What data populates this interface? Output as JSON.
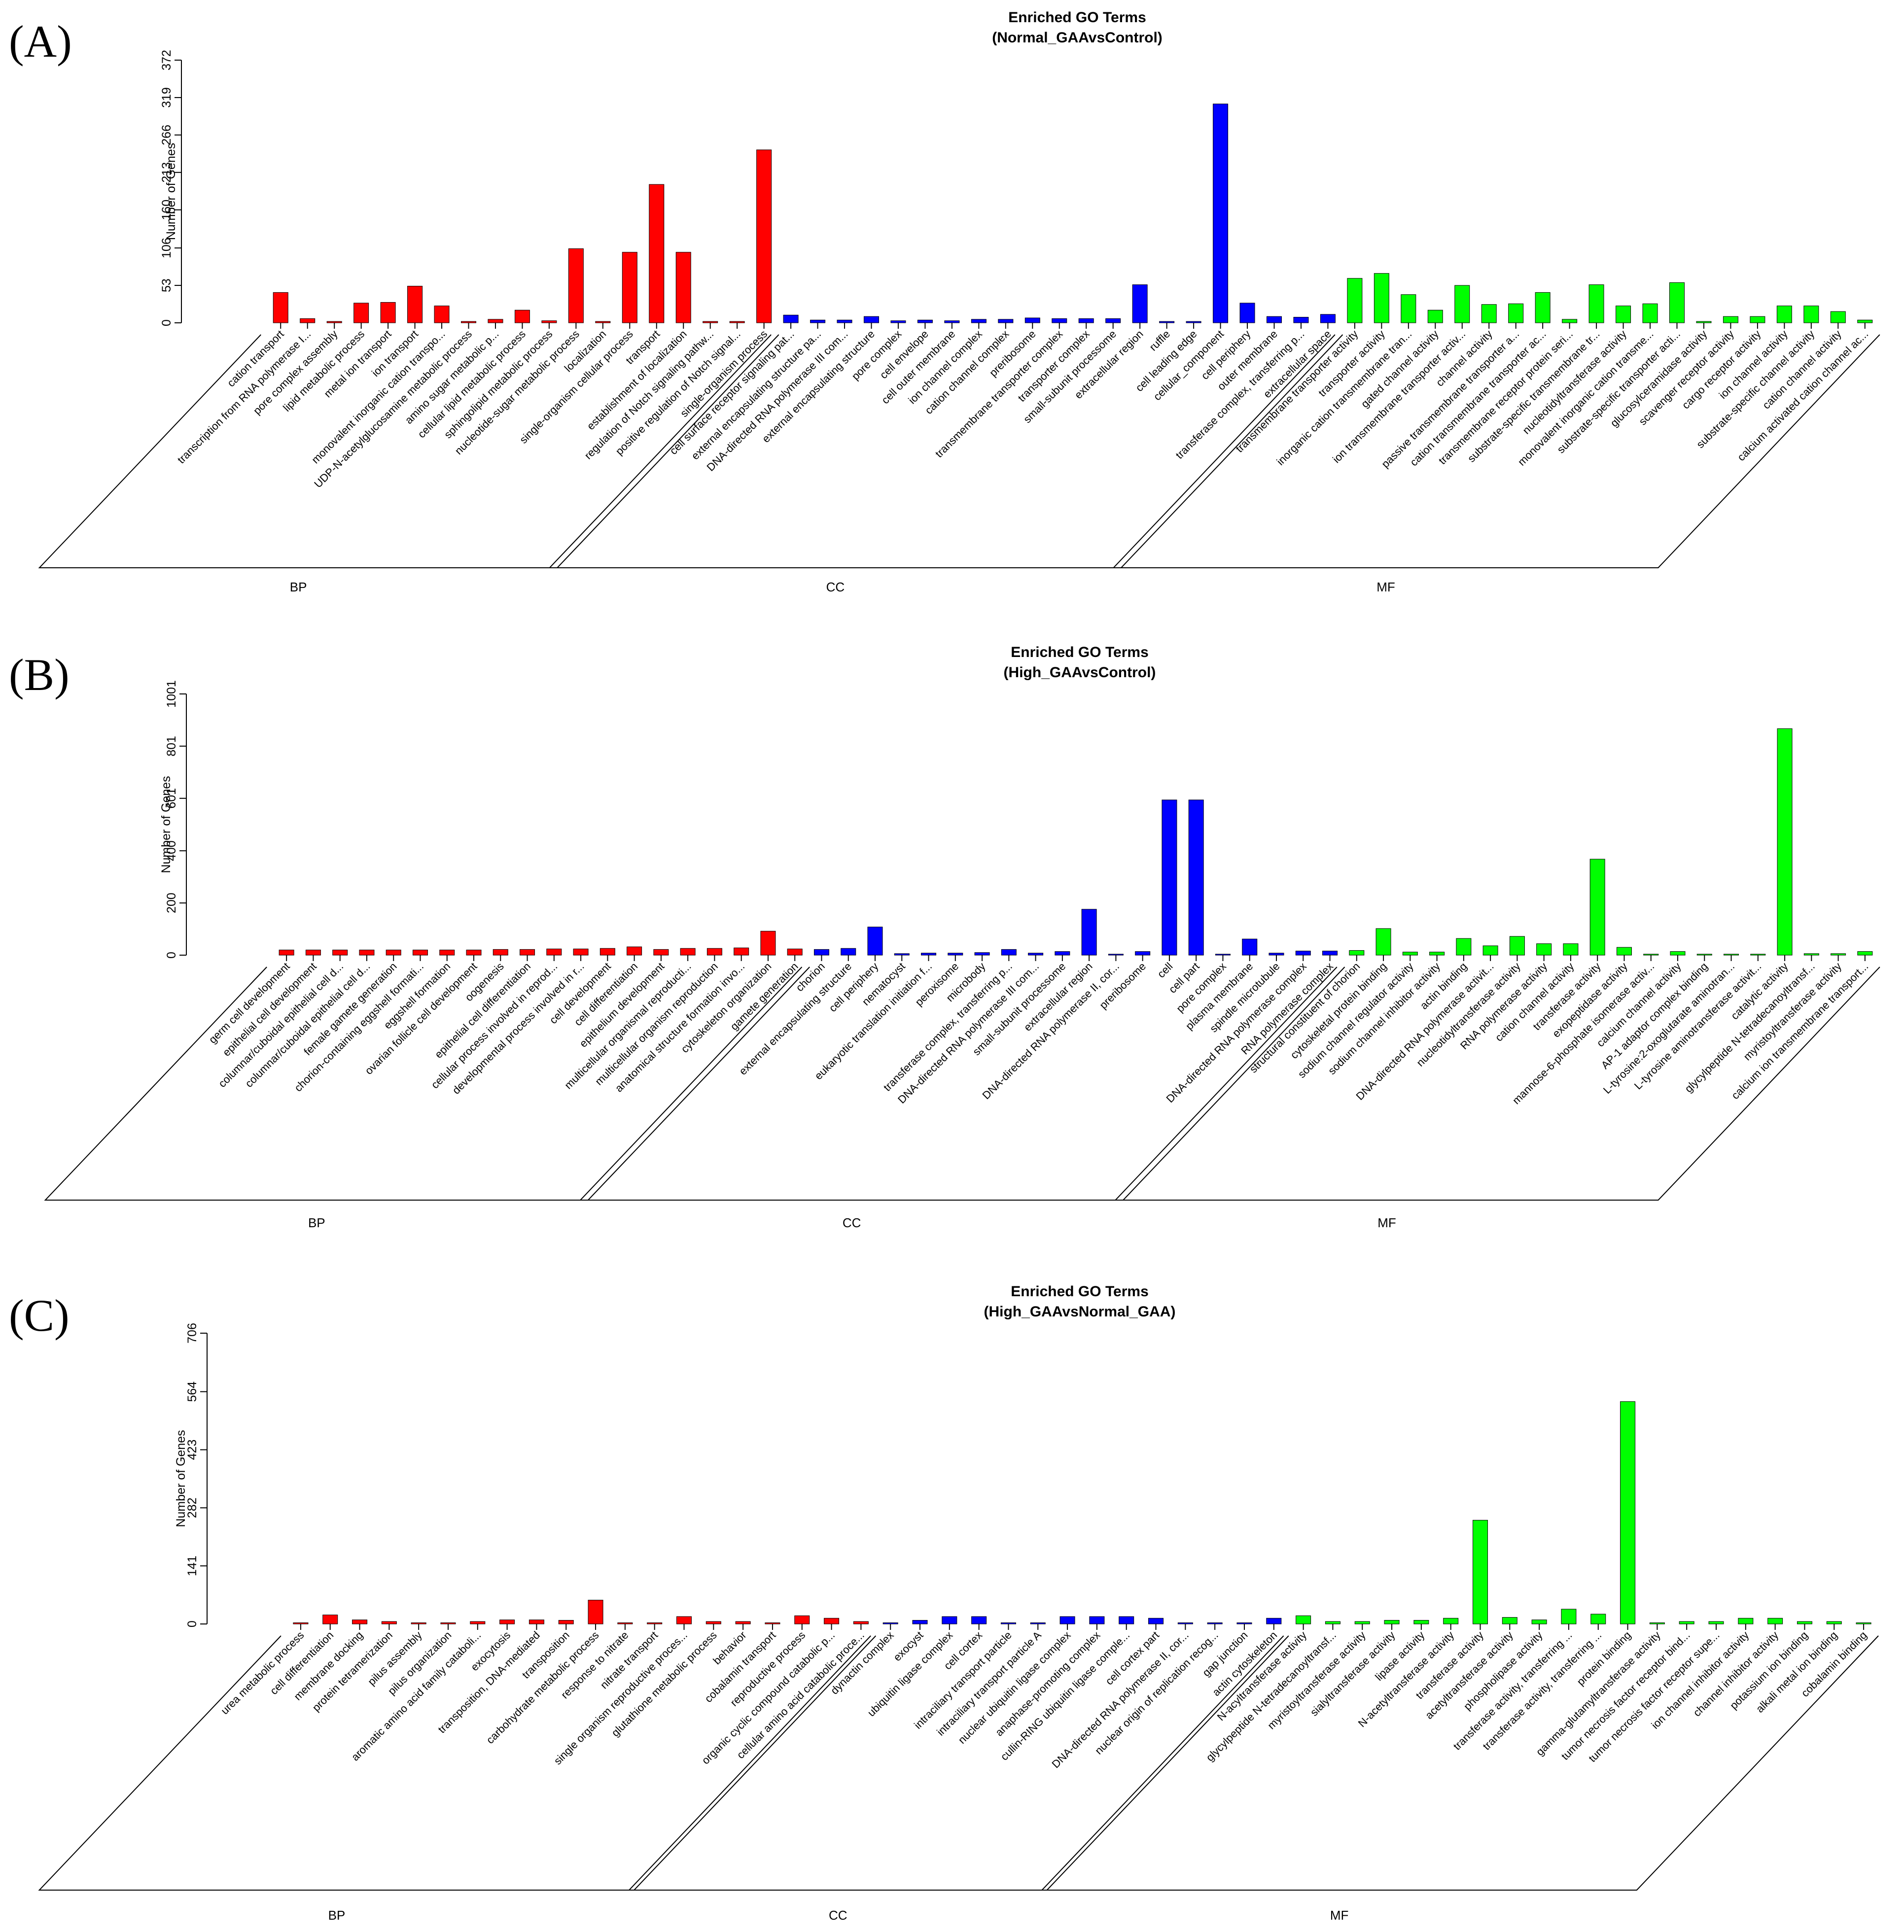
{
  "figure": {
    "panels": [
      "(A)",
      "(B)",
      "(C)"
    ]
  },
  "colors": {
    "BP": "#ff0000",
    "CC": "#0000ff",
    "MF": "#00ff00"
  },
  "chart_data": [
    {
      "type": "bar",
      "panel_label": "(A)",
      "title": "Enriched GO Terms",
      "subtitle": "(Normal_GAAvsControl)",
      "ylabel": "Number of Genes",
      "yticks": [
        0,
        53,
        106,
        160,
        213,
        266,
        319,
        372
      ],
      "ylim": [
        0,
        372
      ],
      "groups": [
        {
          "name": "BP",
          "color": "#ff0000",
          "categories": [
            "cation transport",
            "transcription from RNA polymerase I...",
            "pore complex assembly",
            "lipid metabolic process",
            "metal ion transport",
            "ion transport",
            "monovalent inorganic cation transpo...",
            "UDP-N-acetylglucosamine metabolic process",
            "amino sugar metabolic p...",
            "cellular lipid metabolic process",
            "sphingolipid metabolic process",
            "nucleotide-sugar metabolic process",
            "localization",
            "single-organism cellular process",
            "transport",
            "establishment of localization",
            "regulation of Notch signaling pathw...",
            "positive regulation of Notch signal...",
            "single-organism process"
          ],
          "values": [
            43,
            6,
            2,
            28,
            29,
            52,
            24,
            2,
            5,
            18,
            3,
            105,
            2,
            100,
            196,
            100,
            2,
            2,
            245
          ]
        },
        {
          "name": "CC",
          "color": "#0000ff",
          "categories": [
            "cell surface receptor signaling pat...",
            "external encapsulating structure pa...",
            "DNA-directed RNA polymerase III com...",
            "external encapsulating structure",
            "pore complex",
            "cell envelope",
            "cell outer membrane",
            "ion channel complex",
            "cation channel complex",
            "preribosome",
            "transmembrane transporter complex",
            "transporter complex",
            "small-subunit processome",
            "extracellular region",
            "ruffle",
            "cell leading edge",
            "cellular_component",
            "cell periphery",
            "outer membrane",
            "transferase complex, transferring p...",
            "extracellular space"
          ],
          "values": [
            11,
            4,
            4,
            9,
            3,
            4,
            3,
            5,
            5,
            7,
            6,
            6,
            6,
            54,
            2,
            2,
            310,
            28,
            9,
            8,
            12
          ]
        },
        {
          "name": "MF",
          "color": "#00ff00",
          "categories": [
            "transmembrane transporter activity",
            "transporter activity",
            "inorganic cation transmembrane tran...",
            "gated channel activity",
            "ion transmembrane transporter activ...",
            "channel activity",
            "passive transmembrane transporter a...",
            "cation transmembrane transporter ac...",
            "transmembrane receptor protein seri...",
            "substrate-specific transmembrane tr...",
            "nucleotidyltransferase activity",
            "monovalent inorganic cation transme...",
            "substrate-specific transporter acti...",
            "glucosylceramidase activity",
            "scavenger receptor activity",
            "cargo receptor activity",
            "ion channel activity",
            "substrate-specific channel activity",
            "cation channel activity",
            "calcium activated cation channel ac..."
          ],
          "values": [
            63,
            70,
            40,
            18,
            53,
            26,
            27,
            43,
            5,
            54,
            24,
            27,
            57,
            2,
            9,
            9,
            24,
            24,
            16,
            4
          ]
        }
      ]
    },
    {
      "type": "bar",
      "panel_label": "(B)",
      "title": "Enriched GO Terms",
      "subtitle": "(High_GAAvsControl)",
      "ylabel": "Number of Genes",
      "yticks": [
        0,
        200,
        400,
        601,
        801,
        1001
      ],
      "ylim": [
        0,
        1001
      ],
      "groups": [
        {
          "name": "BP",
          "color": "#ff0000",
          "categories": [
            "germ cell development",
            "epithelial cell development",
            "columnar/cuboidal epithelial cell d...",
            "columnar/cuboidal epithelial cell d...",
            "female gamete generation",
            "chorion-containing eggshell formati...",
            "eggshell formation",
            "ovarian follicle cell development",
            "oogenesis",
            "epithelial cell differentiation",
            "cellular process involved in reprod...",
            "developmental process involved in r...",
            "cell development",
            "cell differentiation",
            "epithelium development",
            "multicellular organismal reproducti...",
            "multicellular organism reproduction",
            "anatomical structure formation invo...",
            "cytoskeleton organization",
            "gamete generation"
          ],
          "values": [
            20,
            20,
            20,
            20,
            20,
            20,
            20,
            20,
            22,
            22,
            24,
            24,
            26,
            32,
            22,
            26,
            26,
            28,
            92,
            24
          ]
        },
        {
          "name": "CC",
          "color": "#0000ff",
          "categories": [
            "chorion",
            "external encapsulating structure",
            "cell periphery",
            "nematocyst",
            "eukaryotic translation initiation f...",
            "peroxisome",
            "microbody",
            "transferase complex, transferring p...",
            "DNA-directed RNA polymerase III com...",
            "small-subunit processome",
            "extracellular region",
            "DNA-directed RNA polymerase II, cor...",
            "preribosome",
            "cell",
            "cell part",
            "pore complex",
            "plasma membrane",
            "spindle microtubule",
            "DNA-directed RNA polymerase complex",
            "RNA polymerase complex"
          ],
          "values": [
            22,
            26,
            108,
            6,
            8,
            8,
            10,
            22,
            8,
            14,
            176,
            4,
            14,
            595,
            595,
            4,
            62,
            8,
            16,
            16
          ]
        },
        {
          "name": "MF",
          "color": "#00ff00",
          "categories": [
            "structural constituent of chorion",
            "cytoskeletal protein binding",
            "sodium channel regulator activity",
            "sodium channel inhibitor activity",
            "actin binding",
            "DNA-directed RNA polymerase activit...",
            "nucleotidyltransferase activity",
            "RNA polymerase activity",
            "cation channel activity",
            "transferase activity",
            "exopeptidase activity",
            "mannose-6-phosphate isomerase activ...",
            "calcium channel activity",
            "AP-1 adaptor complex binding",
            "L-tyrosine:2-oxoglutarate aminotran...",
            "L-tyrosine aminotransferase activit...",
            "catalytic activity",
            "glycylpeptide N-tetradecanoyltransf...",
            "myristoyltransferase activity",
            "calcium ion transmembrane transport..."
          ],
          "values": [
            18,
            102,
            12,
            12,
            64,
            36,
            72,
            44,
            44,
            368,
            30,
            4,
            14,
            4,
            4,
            4,
            868,
            6,
            6,
            14
          ]
        }
      ]
    },
    {
      "type": "bar",
      "panel_label": "(C)",
      "title": "Enriched GO Terms",
      "subtitle": "(High_GAAvsNormal_GAA)",
      "ylabel": "Number of Genes",
      "yticks": [
        0,
        141,
        282,
        423,
        564,
        706
      ],
      "ylim": [
        0,
        706
      ],
      "groups": [
        {
          "name": "BP",
          "color": "#ff0000",
          "categories": [
            "urea metabolic process",
            "cell differentiation",
            "membrane docking",
            "protein tetramerization",
            "pilus assembly",
            "pilus organization",
            "aromatic amino acid family cataboli...",
            "exocytosis",
            "transposition, DNA-mediated",
            "transposition",
            "carbohydrate metabolic process",
            "response to nitrate",
            "nitrate transport",
            "single organism reproductive proces...",
            "glutathione metabolic process",
            "behavior",
            "cobalamin transport",
            "reproductive process",
            "organic cyclic compound catabolic p...",
            "cellular amino acid catabolic proce..."
          ],
          "values": [
            3,
            22,
            10,
            6,
            3,
            3,
            6,
            10,
            10,
            9,
            58,
            3,
            3,
            18,
            6,
            6,
            3,
            20,
            14,
            6
          ]
        },
        {
          "name": "CC",
          "color": "#0000ff",
          "categories": [
            "dynactin complex",
            "exocyst",
            "ubiquitin ligase complex",
            "cell cortex",
            "intraciliary transport particle",
            "intraciliary transport particle A",
            "nuclear ubiquitin ligase complex",
            "anaphase-promoting complex",
            "cullin-RING ubiquitin ligase comple...",
            "cell cortex part",
            "DNA-directed RNA polymerase II, cor...",
            "nuclear origin of replication recog...",
            "gap junction",
            "actin cytoskeleton"
          ],
          "values": [
            3,
            9,
            18,
            18,
            3,
            3,
            18,
            18,
            18,
            14,
            3,
            3,
            3,
            14
          ]
        },
        {
          "name": "MF",
          "color": "#00ff00",
          "categories": [
            "N-acyltransferase activity",
            "glycylpeptide N-tetradecanoyltransf...",
            "myristoyltransferase activity",
            "sialyltransferase activity",
            "lipase activity",
            "N-acetyltransferase activity",
            "transferase activity",
            "acetyltransferase activity",
            "phospholipase activity",
            "transferase activity, transferring ...",
            "transferase activity, transferring ...",
            "protein binding",
            "gamma-glutamyltransferase activity",
            "tumor necrosis factor receptor bind...",
            "tumor necrosis factor receptor supe...",
            "ion channel inhibitor activity",
            "channel inhibitor activity",
            "potassium ion binding",
            "alkali metal ion binding",
            "cobalamin binding"
          ],
          "values": [
            20,
            6,
            6,
            9,
            9,
            14,
            252,
            16,
            10,
            36,
            24,
            540,
            3,
            6,
            6,
            14,
            14,
            6,
            6,
            3
          ]
        }
      ]
    }
  ]
}
